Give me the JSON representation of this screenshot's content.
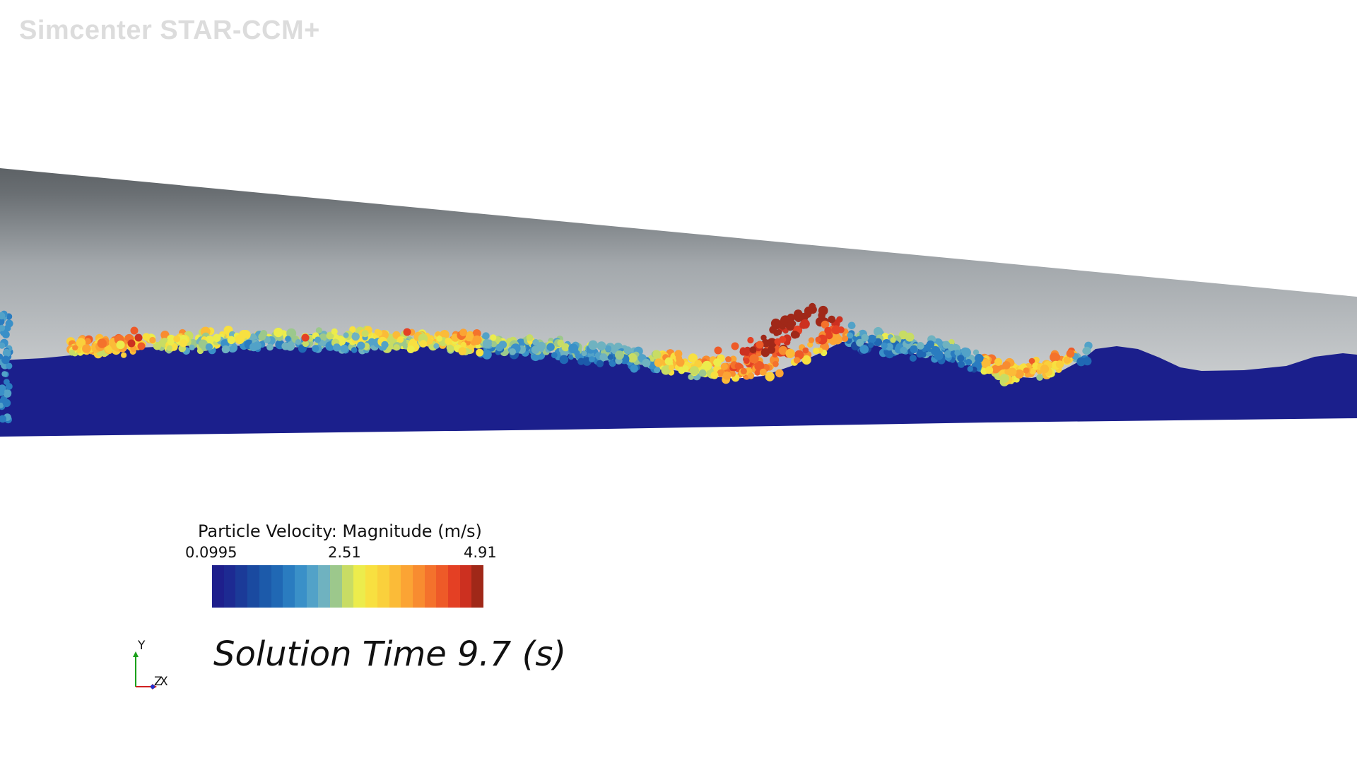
{
  "app": {
    "watermark": "Simcenter STAR-CCM+"
  },
  "legend": {
    "title": "Particle Velocity: Magnitude (m/s)",
    "min_label": "0.0995",
    "mid_label": "2.51",
    "max_label": "4.91",
    "colors": [
      "#1e1f8c",
      "#1d2a92",
      "#1b3a98",
      "#1a4aa0",
      "#1c5aaa",
      "#2068b4",
      "#2a7cc0",
      "#3a90c8",
      "#52a2c8",
      "#6fb2c0",
      "#9cc88c",
      "#c8dc64",
      "#ecec4c",
      "#f8e040",
      "#fad03c",
      "#fbbb38",
      "#fba434",
      "#f88c30",
      "#f4722c",
      "#ee5a28",
      "#e44024",
      "#cc3020",
      "#a02818"
    ]
  },
  "scene": {
    "solution_time": "Solution Time 9.7 (s)",
    "axes": {
      "y_label": "Y",
      "z_label": "Z",
      "x_label": "X"
    },
    "colors": {
      "pipe_dark": "#5d6266",
      "pipe_light": "#cbced0",
      "fluid": "#1b1f8c"
    }
  }
}
